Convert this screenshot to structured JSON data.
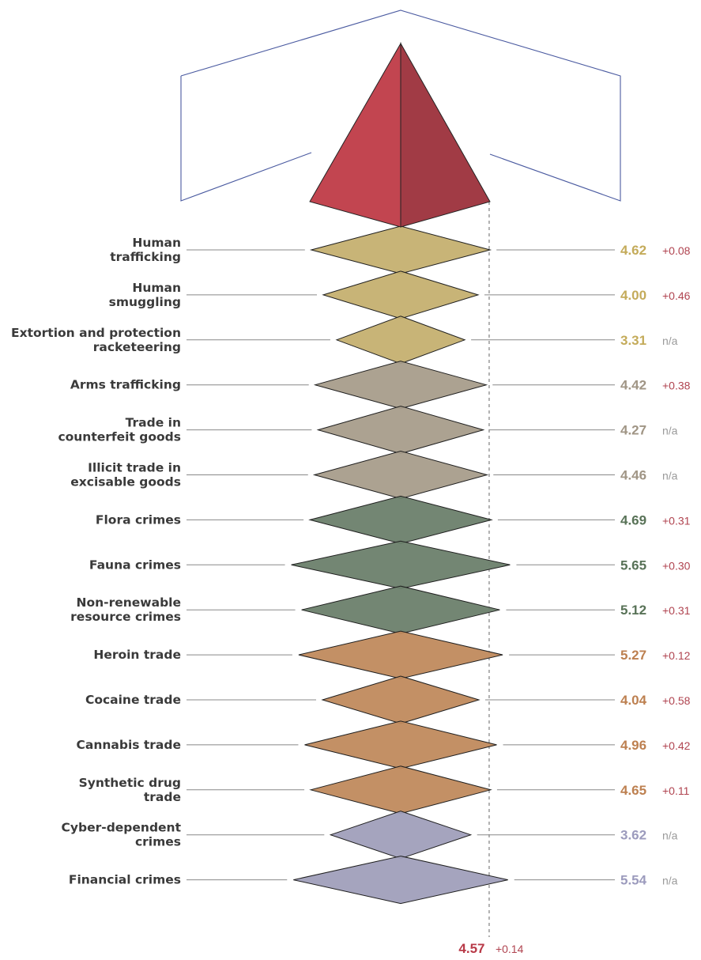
{
  "chart_data": {
    "type": "bar",
    "categories": [
      "Human trafficking",
      "Human smuggling",
      "Extortion and protection racketeering",
      "Arms trafficking",
      "Trade in counterfeit goods",
      "Illicit trade in excisable goods",
      "Flora crimes",
      "Fauna crimes",
      "Non-renewable resource crimes",
      "Heroin trade",
      "Cocaine trade",
      "Cannabis trade",
      "Synthetic drug trade",
      "Cyber-dependent crimes",
      "Financial crimes"
    ],
    "label_lines": [
      [
        "Human",
        "trafficking"
      ],
      [
        "Human",
        "smuggling"
      ],
      [
        "Extortion and protection",
        "racketeering"
      ],
      [
        "Arms trafficking"
      ],
      [
        "Trade in",
        "counterfeit goods"
      ],
      [
        "Illicit trade in",
        "excisable goods"
      ],
      [
        "Flora crimes"
      ],
      [
        "Fauna crimes"
      ],
      [
        "Non-renewable",
        "resource crimes"
      ],
      [
        "Heroin trade"
      ],
      [
        "Cocaine trade"
      ],
      [
        "Cannabis trade"
      ],
      [
        "Synthetic drug",
        "trade"
      ],
      [
        "Cyber-dependent",
        "crimes"
      ],
      [
        "Financial crimes"
      ]
    ],
    "values": [
      4.62,
      4.0,
      3.31,
      4.42,
      4.27,
      4.46,
      4.69,
      5.65,
      5.12,
      5.27,
      4.04,
      4.96,
      4.65,
      3.62,
      5.54
    ],
    "value_labels": [
      "4.62",
      "4.00",
      "3.31",
      "4.42",
      "4.27",
      "4.46",
      "4.69",
      "5.65",
      "5.12",
      "5.27",
      "4.04",
      "4.96",
      "4.65",
      "3.62",
      "5.54"
    ],
    "changes": [
      "+0.08",
      "+0.46",
      "n/a",
      "+0.38",
      "n/a",
      "n/a",
      "+0.31",
      "+0.30",
      "+0.31",
      "+0.12",
      "+0.58",
      "+0.42",
      "+0.11",
      "n/a",
      "n/a"
    ],
    "groups": [
      "people",
      "people",
      "people",
      "trade",
      "trade",
      "trade",
      "environment",
      "environment",
      "environment",
      "drugs",
      "drugs",
      "drugs",
      "drugs",
      "cyber",
      "cyber"
    ],
    "group_colors": {
      "people": "#c5b070",
      "trade": "#a89d8b",
      "environment": "#6b806c",
      "drugs": "#c08a5d",
      "cyber": "#a09fbb"
    },
    "group_text_colors": {
      "people": "#c4ab5a",
      "trade": "#a09585",
      "environment": "#587257",
      "drugs": "#bd8050",
      "cyber": "#9c9bbd"
    },
    "overall": {
      "value": 4.57,
      "value_label": "4.57",
      "change": "+0.14"
    },
    "colors": {
      "change_positive": "#b04450",
      "change_na": "#9a9a9a",
      "pyramid_left": "#c24550",
      "pyramid_right": "#a13b45",
      "frame": "#4a5aa0",
      "overall_text": "#b83a48"
    }
  }
}
